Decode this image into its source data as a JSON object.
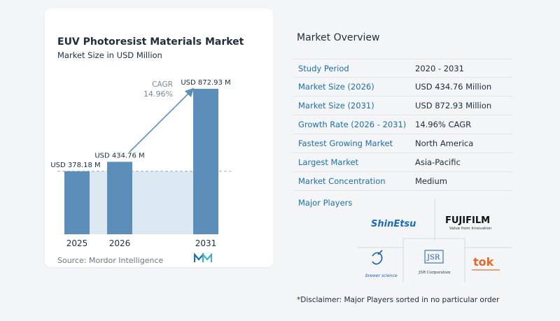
{
  "chart_data": {
    "type": "bar",
    "title": "EUV Photoresist Materials Market",
    "subtitle": "Market Size in USD Million",
    "categories": [
      "2025",
      "2026",
      "2031"
    ],
    "values": [
      378.18,
      434.76,
      872.93
    ],
    "value_labels": [
      "USD 378.18 M",
      "USD 434.76 M",
      "USD 872.93 M"
    ],
    "cagr_label": "CAGR",
    "cagr_value": "14.96%",
    "ylim": [
      0,
      900
    ],
    "grid": false,
    "legend": "none"
  },
  "source": "Source: Mordor Intelligence",
  "overview": {
    "title": "Market Overview",
    "rows": [
      {
        "key": "Study Period",
        "value": "2020 - 2031"
      },
      {
        "key": "Market Size (2026)",
        "value": "USD 434.76 Million"
      },
      {
        "key": "Market Size (2031)",
        "value": "USD 872.93 Million"
      },
      {
        "key": "Growth Rate (2026 - 2031)",
        "value": "14.96% CAGR"
      },
      {
        "key": "Fastest Growing Market",
        "value": "North America"
      },
      {
        "key": "Largest Market",
        "value": "Asia-Pacific"
      },
      {
        "key": "Market Concentration",
        "value": "Medium"
      }
    ]
  },
  "players": {
    "title": "Major Players",
    "logos": [
      "ShinEtsu",
      "FUJIFILM",
      "Value from Innovation",
      "brewer science",
      "JSR",
      "JSR Corporation",
      "tok"
    ]
  },
  "disclaimer": "*Disclaimer: Major Players sorted in no particular order",
  "colors": {
    "bar": "#5b8fb9",
    "bar_light": "#dde9f2",
    "arrow": "#5b8fb9",
    "accent": "#1c6fa8"
  }
}
